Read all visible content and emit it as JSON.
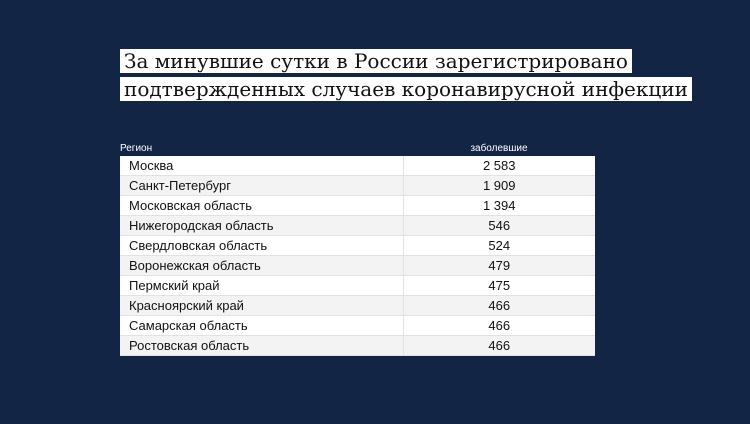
{
  "headline": {
    "line1": "За минувшие сутки в России зарегистрировано",
    "line2": "подтвержденных случаев коронавирусной инфекции"
  },
  "table": {
    "headers": [
      "Регион",
      "заболевшие"
    ],
    "rows": [
      {
        "region": "Москва",
        "cases": "2 583"
      },
      {
        "region": "Санкт-Петербург",
        "cases": "1 909"
      },
      {
        "region": "Московская область",
        "cases": "1 394"
      },
      {
        "region": "Нижегородская область",
        "cases": "546"
      },
      {
        "region": "Свердловская область",
        "cases": "524"
      },
      {
        "region": "Воронежская область",
        "cases": "479"
      },
      {
        "region": "Пермский край",
        "cases": "475"
      },
      {
        "region": "Красноярский край",
        "cases": "466"
      },
      {
        "region": "Самарская область",
        "cases": "466"
      },
      {
        "region": "Ростовская область",
        "cases": "466"
      }
    ]
  },
  "colors": {
    "background": "#132545",
    "row": "#ffffff",
    "row_alt": "#f3f3f3"
  }
}
